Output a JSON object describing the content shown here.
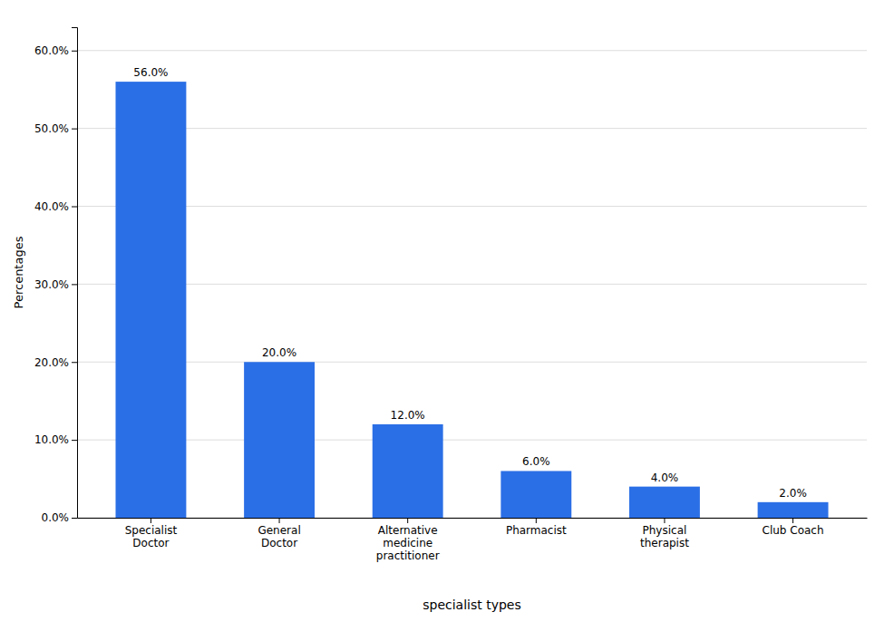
{
  "chart_data": {
    "type": "bar",
    "categories": [
      "Specialist\nDoctor",
      "General\nDoctor",
      "Alternative\nmedicine\npractitioner",
      "Pharmacist",
      "Physical\ntherapist",
      "Club Coach"
    ],
    "values": [
      56.0,
      20.0,
      12.0,
      6.0,
      4.0,
      2.0
    ],
    "value_labels": [
      "56.0%",
      "20.0%",
      "12.0%",
      "6.0%",
      "4.0%",
      "2.0%"
    ],
    "data_labels": true,
    "color": "#2B6FE6",
    "xlabel": "specialist types",
    "ylabel": "Percentages",
    "ylim": [
      0,
      63
    ],
    "yticks": [
      {
        "value": 0,
        "label": "0.0%"
      },
      {
        "value": 10,
        "label": "10.0%"
      },
      {
        "value": 20,
        "label": "20.0%"
      },
      {
        "value": 30,
        "label": "30.0%"
      },
      {
        "value": 40,
        "label": "40.0%"
      },
      {
        "value": 50,
        "label": "50.0%"
      },
      {
        "value": 60,
        "label": "60.0%"
      }
    ],
    "grid": true
  }
}
